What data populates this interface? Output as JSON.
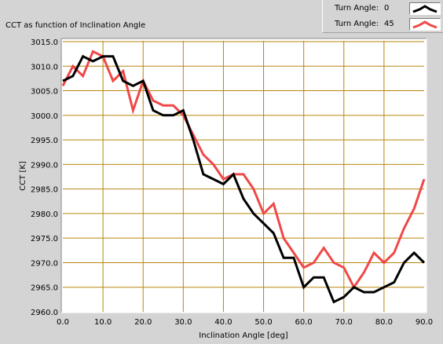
{
  "chart_data": {
    "type": "line",
    "title": "CCT as function of Inclination Angle",
    "xlabel": "Inclination Angle [deg]",
    "ylabel": "CCT [K]",
    "xlim": [
      0.0,
      90.0
    ],
    "ylim": [
      2960.0,
      3015.0
    ],
    "xticks": [
      "0.0",
      "10.0",
      "20.0",
      "30.0",
      "40.0",
      "50.0",
      "60.0",
      "70.0",
      "80.0",
      "90.0"
    ],
    "yticks": [
      "2960.0",
      "2965.0",
      "2970.0",
      "2975.0",
      "2980.0",
      "2985.0",
      "2990.0",
      "2995.0",
      "3000.0",
      "3005.0",
      "3010.0",
      "3015.0"
    ],
    "grid": true,
    "legend_position": "top-right",
    "series": [
      {
        "name": "Turn Angle:",
        "turn_angle": "0",
        "color": "#000000",
        "x": [
          0,
          2.5,
          5,
          7.5,
          10,
          12.5,
          15,
          17.5,
          20,
          22.5,
          25,
          27.5,
          30,
          32.5,
          35,
          37.5,
          40,
          42.5,
          45,
          47.5,
          50,
          52.5,
          55,
          57.5,
          60,
          62.5,
          65,
          67.5,
          70,
          72.5,
          75,
          77.5,
          80,
          82.5,
          85,
          87.5,
          90
        ],
        "y": [
          3007,
          3008,
          3012,
          3011,
          3012,
          3012,
          3007,
          3006,
          3007,
          3001,
          3000,
          3000,
          3001,
          2995,
          2988,
          2987,
          2986,
          2988,
          2983,
          2980,
          2978,
          2976,
          2971,
          2971,
          2965,
          2967,
          2967,
          2962,
          2963,
          2965,
          2964,
          2964,
          2965,
          2966,
          2970,
          2972,
          2970
        ]
      },
      {
        "name": "Turn Angle:",
        "turn_angle": "45",
        "color": "#f04848",
        "x": [
          0,
          2.5,
          5,
          7.5,
          10,
          12.5,
          15,
          17.5,
          20,
          22.5,
          25,
          27.5,
          30,
          32.5,
          35,
          37.5,
          40,
          42.5,
          45,
          47.5,
          50,
          52.5,
          55,
          57.5,
          60,
          62.5,
          65,
          67.5,
          70,
          72.5,
          75,
          77.5,
          80,
          82.5,
          85,
          87.5,
          90
        ],
        "y": [
          3006,
          3010,
          3008,
          3013,
          3012,
          3007,
          3009,
          3001,
          3007,
          3003,
          3002,
          3002,
          3000,
          2996,
          2992,
          2990,
          2987,
          2988,
          2988,
          2985,
          2980,
          2982,
          2975,
          2972,
          2969,
          2970,
          2973,
          2970,
          2969,
          2965,
          2968,
          2972,
          2970,
          2972,
          2977,
          2981,
          2987
        ]
      }
    ]
  }
}
